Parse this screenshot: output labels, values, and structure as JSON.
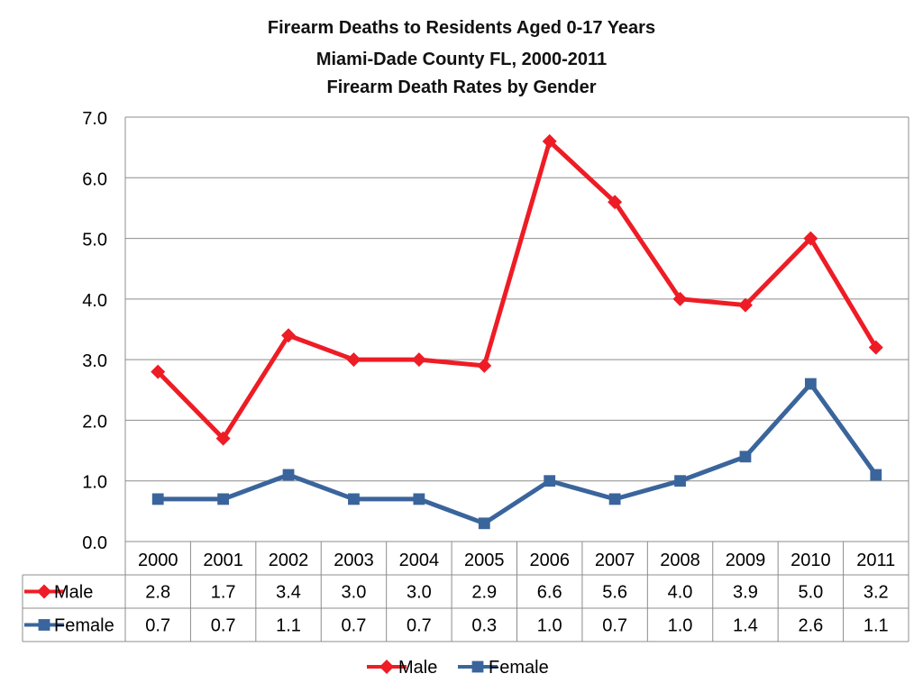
{
  "chart_data": {
    "type": "line",
    "title_lines": [
      "Firearm Deaths to Residents Aged 0-17 Years",
      "Miami-Dade County FL, 2000-2011",
      "Firearm Death Rates by Gender"
    ],
    "categories": [
      "2000",
      "2001",
      "2002",
      "2003",
      "2004",
      "2005",
      "2006",
      "2007",
      "2008",
      "2009",
      "2010",
      "2011"
    ],
    "y_ticks": [
      "0.0",
      "1.0",
      "2.0",
      "3.0",
      "4.0",
      "5.0",
      "6.0",
      "7.0"
    ],
    "ylim": [
      0,
      7
    ],
    "grid": true,
    "legend_position": "bottom",
    "series": [
      {
        "name": "Male",
        "color": "#ee1c25",
        "marker": "diamond",
        "values": [
          2.8,
          1.7,
          3.4,
          3.0,
          3.0,
          2.9,
          6.6,
          5.6,
          4.0,
          3.9,
          5.0,
          3.2
        ],
        "labels": [
          "2.8",
          "1.7",
          "3.4",
          "3.0",
          "3.0",
          "2.9",
          "6.6",
          "5.6",
          "4.0",
          "3.9",
          "5.0",
          "3.2"
        ]
      },
      {
        "name": "Female",
        "color": "#3a659c",
        "marker": "square",
        "values": [
          0.7,
          0.7,
          1.1,
          0.7,
          0.7,
          0.3,
          1.0,
          0.7,
          1.0,
          1.4,
          2.6,
          1.1
        ],
        "labels": [
          "0.7",
          "0.7",
          "1.1",
          "0.7",
          "0.7",
          "0.3",
          "1.0",
          "0.7",
          "1.0",
          "1.4",
          "2.6",
          "1.1"
        ]
      }
    ]
  }
}
